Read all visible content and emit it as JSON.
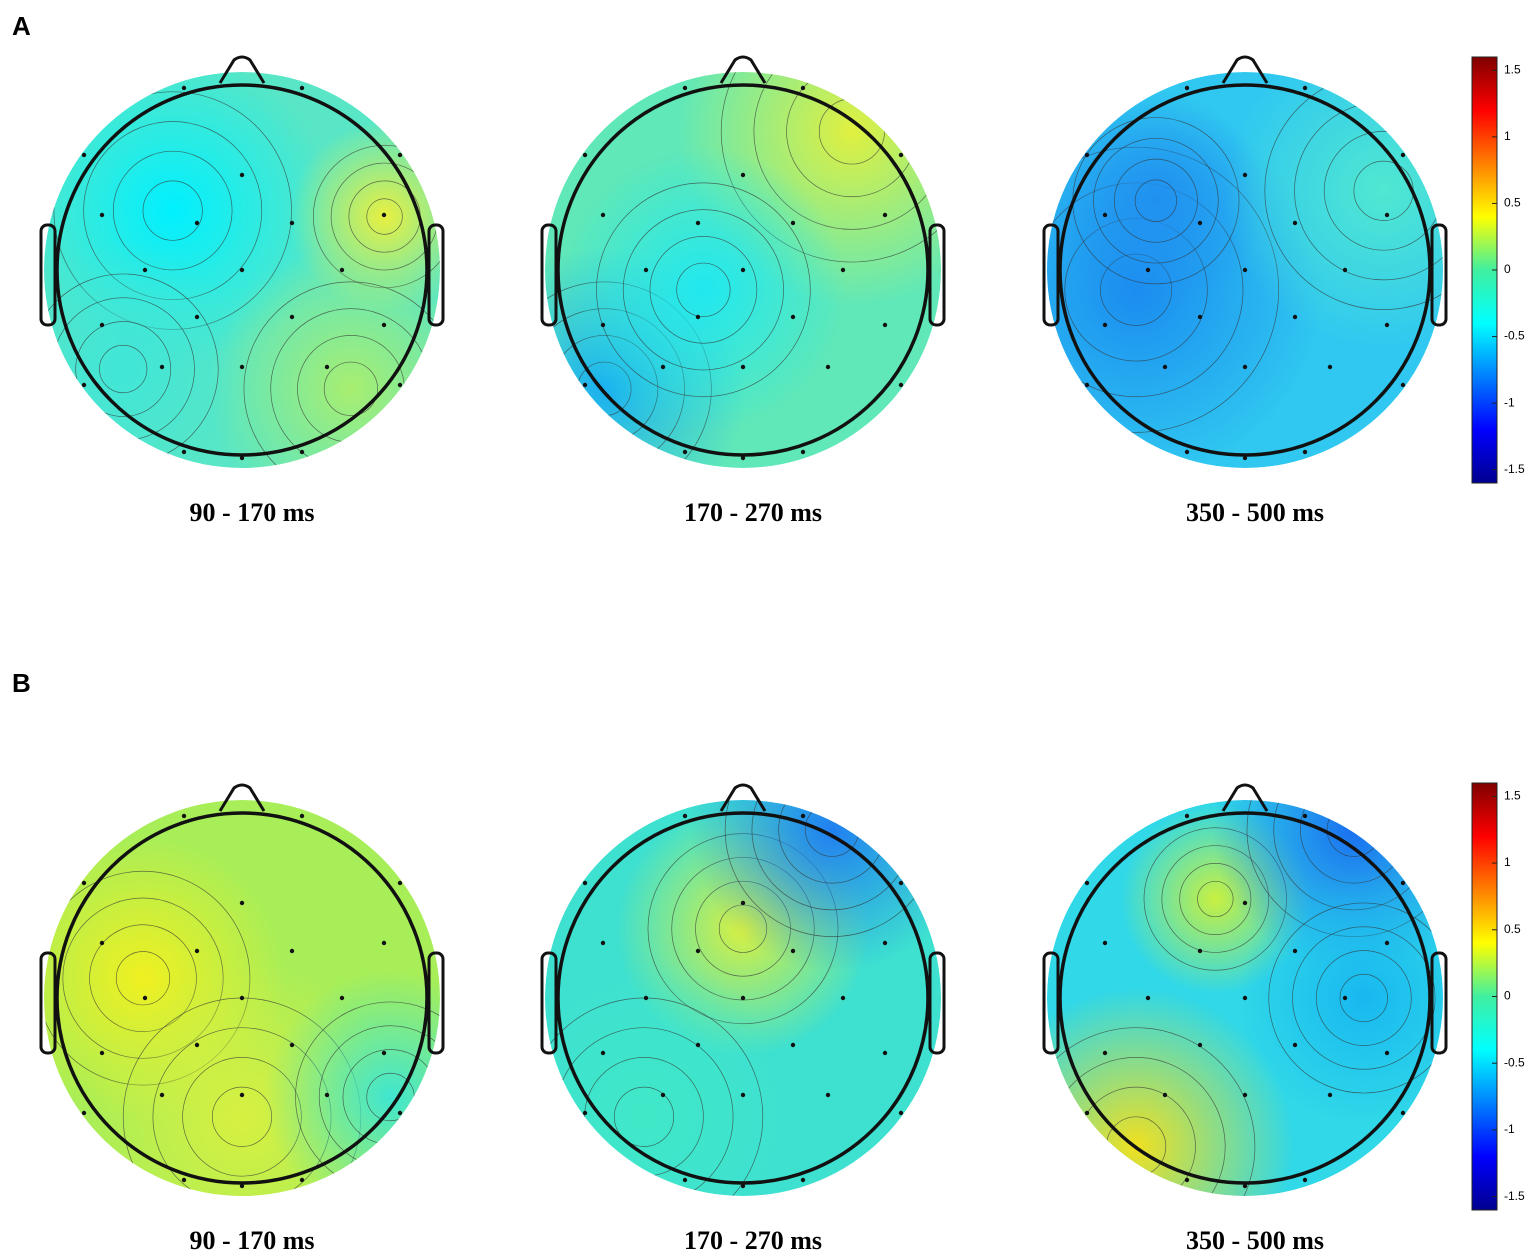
{
  "panels": [
    {
      "label": "A",
      "maps": [
        {
          "caption": "90 - 170 ms"
        },
        {
          "caption": "170 - 270 ms"
        },
        {
          "caption": "350 - 500 ms"
        }
      ],
      "colorbar": {
        "clim": [
          -1.6,
          1.6
        ],
        "ticks": [
          1.5,
          1,
          0.5,
          0,
          -0.5,
          -1,
          -1.5
        ]
      }
    },
    {
      "label": "B",
      "maps": [
        {
          "caption": "90 - 170 ms"
        },
        {
          "caption": "170 - 270 ms"
        },
        {
          "caption": "350 - 500 ms"
        }
      ],
      "colorbar": {
        "clim": [
          -1.6,
          1.6
        ],
        "ticks": [
          1.5,
          1,
          0.5,
          0,
          -0.5,
          -1,
          -1.5
        ]
      }
    }
  ]
}
